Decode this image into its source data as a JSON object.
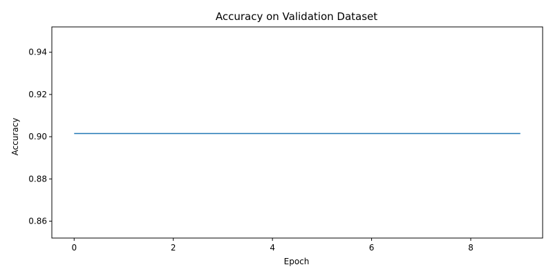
{
  "chart_data": {
    "type": "line",
    "title": "Accuracy on Validation Dataset",
    "xlabel": "Epoch",
    "ylabel": "Accuracy",
    "xlim": [
      -0.45,
      9.45
    ],
    "ylim": [
      0.852,
      0.952
    ],
    "x_ticks": [
      0,
      2,
      4,
      6,
      8
    ],
    "x_tick_labels": [
      "0",
      "2",
      "4",
      "6",
      "8"
    ],
    "y_ticks": [
      0.86,
      0.88,
      0.9,
      0.92,
      0.94
    ],
    "y_tick_labels": [
      "0.86",
      "0.88",
      "0.90",
      "0.92",
      "0.94"
    ],
    "grid": false,
    "series": [
      {
        "color": "#1f77b4",
        "x": [
          0,
          1,
          2,
          3,
          4,
          5,
          6,
          7,
          8,
          9
        ],
        "values": [
          0.9015,
          0.9015,
          0.9015,
          0.9015,
          0.9015,
          0.9015,
          0.9015,
          0.9015,
          0.9015,
          0.9015
        ]
      }
    ]
  }
}
